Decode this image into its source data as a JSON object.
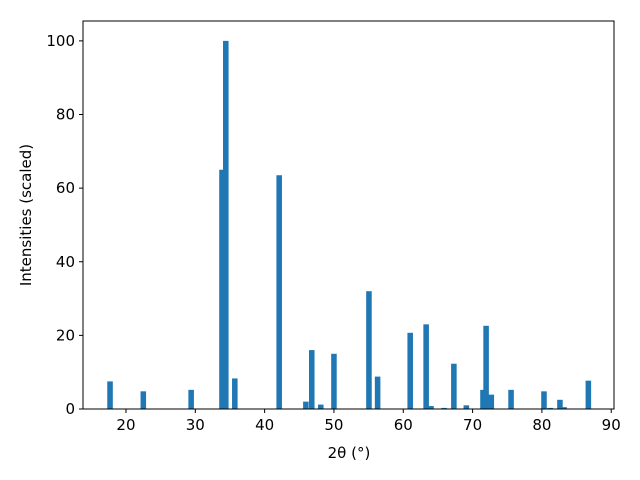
{
  "chart_data": {
    "type": "bar",
    "x_label": "2θ (°)",
    "y_label": "Intensities (scaled)",
    "x": [
      17.7,
      22.5,
      29.4,
      33.85,
      34.4,
      35.7,
      42.1,
      45.95,
      46.8,
      48.1,
      50.0,
      55.05,
      56.3,
      61.0,
      63.3,
      64.0,
      65.9,
      67.3,
      69.1,
      71.5,
      71.95,
      72.7,
      75.55,
      80.3,
      81.2,
      82.6,
      83.2,
      86.7
    ],
    "values": [
      7.5,
      4.8,
      5.2,
      65,
      100,
      8.3,
      63.5,
      2,
      16,
      1.2,
      15,
      32,
      8.8,
      20.7,
      23,
      0.8,
      0.3,
      12.3,
      1,
      5.2,
      22.6,
      3.9,
      5.2,
      4.8,
      0.3,
      2.5,
      0.5,
      7.7
    ],
    "bar_width": 0.8,
    "color": "#1f77b4",
    "xlim": [
      13.8,
      90.4
    ],
    "xticks": [
      20,
      30,
      40,
      50,
      60,
      70,
      80,
      90
    ],
    "ylim": [
      0,
      105.4
    ],
    "yticks": [
      0,
      20,
      40,
      60,
      80,
      100
    ],
    "grid": false
  }
}
